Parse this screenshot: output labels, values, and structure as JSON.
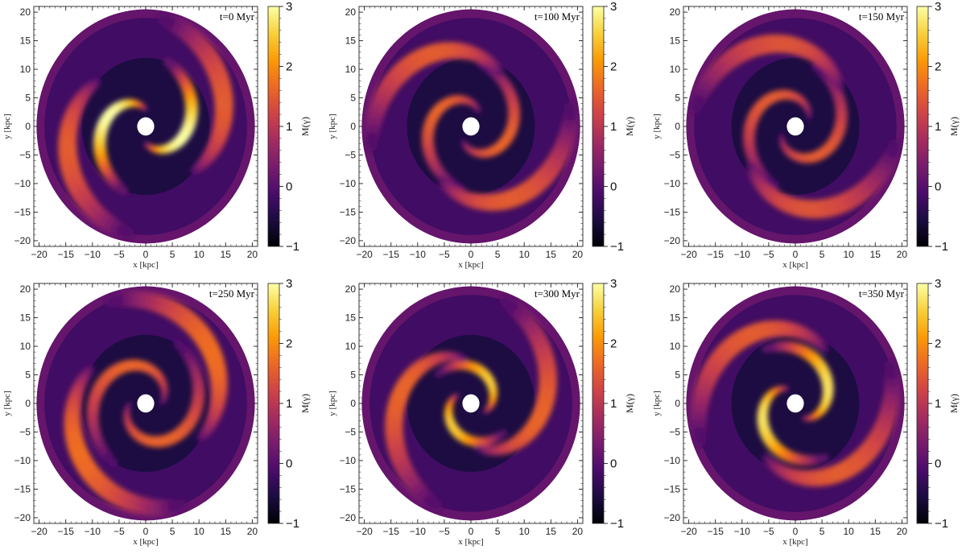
{
  "chart_data": [
    {
      "type": "heatmap",
      "time_label": "t=0 Myr",
      "xlabel": "x [kpc]",
      "ylabel": "y [kpc]",
      "xlim": [
        -21,
        21
      ],
      "ylim": [
        -21,
        21
      ],
      "x_ticks": [
        -20,
        -15,
        -10,
        -5,
        0,
        5,
        10,
        15,
        20
      ],
      "y_ticks": [
        -20,
        -15,
        -10,
        -5,
        0,
        5,
        10,
        15,
        20
      ],
      "colorbar": {
        "label": "M(γ)",
        "range": [
          -1,
          3
        ],
        "ticks": [
          -1,
          0,
          1,
          2,
          3
        ],
        "colormap": "inferno"
      },
      "spiral_arms": [
        {
          "peak": 3.0,
          "r_start": 3,
          "r_end": 12,
          "theta_start_deg": 90,
          "sweep_deg": 160
        },
        {
          "peak": 1.5,
          "r_start": 12,
          "r_end": 19,
          "theta_start_deg": 140,
          "sweep_deg": 120
        }
      ]
    },
    {
      "type": "heatmap",
      "time_label": "t=100 Myr",
      "xlabel": "x [kpc]",
      "ylabel": "y [kpc]",
      "xlim": [
        -21,
        21
      ],
      "ylim": [
        -21,
        21
      ],
      "x_ticks": [
        -20,
        -15,
        -10,
        -5,
        0,
        5,
        10,
        15,
        20
      ],
      "y_ticks": [
        -20,
        -15,
        -10,
        -5,
        0,
        5,
        10,
        15,
        20
      ],
      "colorbar": {
        "label": "M(γ)",
        "range": [
          -1,
          3
        ],
        "ticks": [
          -1,
          0,
          1,
          2,
          3
        ],
        "colormap": "inferno"
      },
      "spiral_arms": [
        {
          "peak": 1.6,
          "r_start": 3,
          "r_end": 11,
          "theta_start_deg": 60,
          "sweep_deg": 200
        },
        {
          "peak": 1.5,
          "r_start": 11,
          "r_end": 19,
          "theta_start_deg": 60,
          "sweep_deg": 130
        }
      ]
    },
    {
      "type": "heatmap",
      "time_label": "t=150 Myr",
      "xlabel": "x [kpc]",
      "ylabel": "y [kpc]",
      "xlim": [
        -21,
        21
      ],
      "ylim": [
        -21,
        21
      ],
      "x_ticks": [
        -20,
        -15,
        -10,
        -5,
        0,
        5,
        10,
        15,
        20
      ],
      "y_ticks": [
        -20,
        -15,
        -10,
        -5,
        0,
        5,
        10,
        15,
        20
      ],
      "colorbar": {
        "label": "M(γ)",
        "range": [
          -1,
          3
        ],
        "ticks": [
          -1,
          0,
          1,
          2,
          3
        ],
        "colormap": "inferno"
      },
      "spiral_arms": [
        {
          "peak": 1.5,
          "r_start": 3,
          "r_end": 11,
          "theta_start_deg": 30,
          "sweep_deg": 220
        },
        {
          "peak": 1.4,
          "r_start": 11,
          "r_end": 19,
          "theta_start_deg": 40,
          "sweep_deg": 130
        }
      ]
    },
    {
      "type": "heatmap",
      "time_label": "t=250 Myr",
      "xlabel": "x [kpc]",
      "ylabel": "y [kpc]",
      "xlim": [
        -21,
        21
      ],
      "ylim": [
        -21,
        21
      ],
      "x_ticks": [
        -20,
        -15,
        -10,
        -5,
        0,
        5,
        10,
        15,
        20
      ],
      "y_ticks": [
        -20,
        -15,
        -10,
        -5,
        0,
        5,
        10,
        15,
        20
      ],
      "colorbar": {
        "label": "M(γ)",
        "range": [
          -1,
          3
        ],
        "ticks": [
          -1,
          0,
          1,
          2,
          3
        ],
        "colormap": "inferno"
      },
      "spiral_arms": [
        {
          "peak": 1.6,
          "r_start": 3,
          "r_end": 12,
          "theta_start_deg": 0,
          "sweep_deg": 240
        },
        {
          "peak": 1.7,
          "r_start": 12,
          "r_end": 19,
          "theta_start_deg": 150,
          "sweep_deg": 140
        }
      ]
    },
    {
      "type": "heatmap",
      "time_label": "t=300 Myr",
      "xlabel": "x [kpc]",
      "ylabel": "y [kpc]",
      "xlim": [
        -21,
        21
      ],
      "ylim": [
        -21,
        21
      ],
      "x_ticks": [
        -20,
        -15,
        -10,
        -5,
        0,
        5,
        10,
        15,
        20
      ],
      "y_ticks": [
        -20,
        -15,
        -10,
        -5,
        0,
        5,
        10,
        15,
        20
      ],
      "colorbar": {
        "label": "M(γ)",
        "range": [
          -1,
          3
        ],
        "ticks": [
          -1,
          0,
          1,
          2,
          3
        ],
        "colormap": "inferno"
      },
      "spiral_arms": [
        {
          "peak": 2.5,
          "r_start": 3,
          "r_end": 8,
          "theta_start_deg": 150,
          "sweep_deg": 170
        },
        {
          "peak": 1.6,
          "r_start": 8,
          "r_end": 19,
          "theta_start_deg": 100,
          "sweep_deg": 150
        }
      ]
    },
    {
      "type": "heatmap",
      "time_label": "t=350 Myr",
      "xlabel": "x [kpc]",
      "ylabel": "y [kpc]",
      "xlim": [
        -21,
        21
      ],
      "ylim": [
        -21,
        21
      ],
      "x_ticks": [
        -20,
        -15,
        -10,
        -5,
        0,
        5,
        10,
        15,
        20
      ],
      "y_ticks": [
        -20,
        -15,
        -10,
        -5,
        0,
        5,
        10,
        15,
        20
      ],
      "colorbar": {
        "label": "M(γ)",
        "range": [
          -1,
          3
        ],
        "ticks": [
          -1,
          0,
          1,
          2,
          3
        ],
        "colormap": "inferno"
      },
      "spiral_arms": [
        {
          "peak": 2.7,
          "r_start": 3,
          "r_end": 11,
          "theta_start_deg": 120,
          "sweep_deg": 180
        },
        {
          "peak": 1.5,
          "r_start": 11,
          "r_end": 19,
          "theta_start_deg": 60,
          "sweep_deg": 140
        }
      ]
    }
  ],
  "colors": {
    "inferno_stops": [
      "#000004",
      "#1b0c41",
      "#4a0c6b",
      "#781c6d",
      "#a52c60",
      "#cf4446",
      "#ed6925",
      "#fb9b06",
      "#f7d13d",
      "#fcffa4"
    ]
  }
}
